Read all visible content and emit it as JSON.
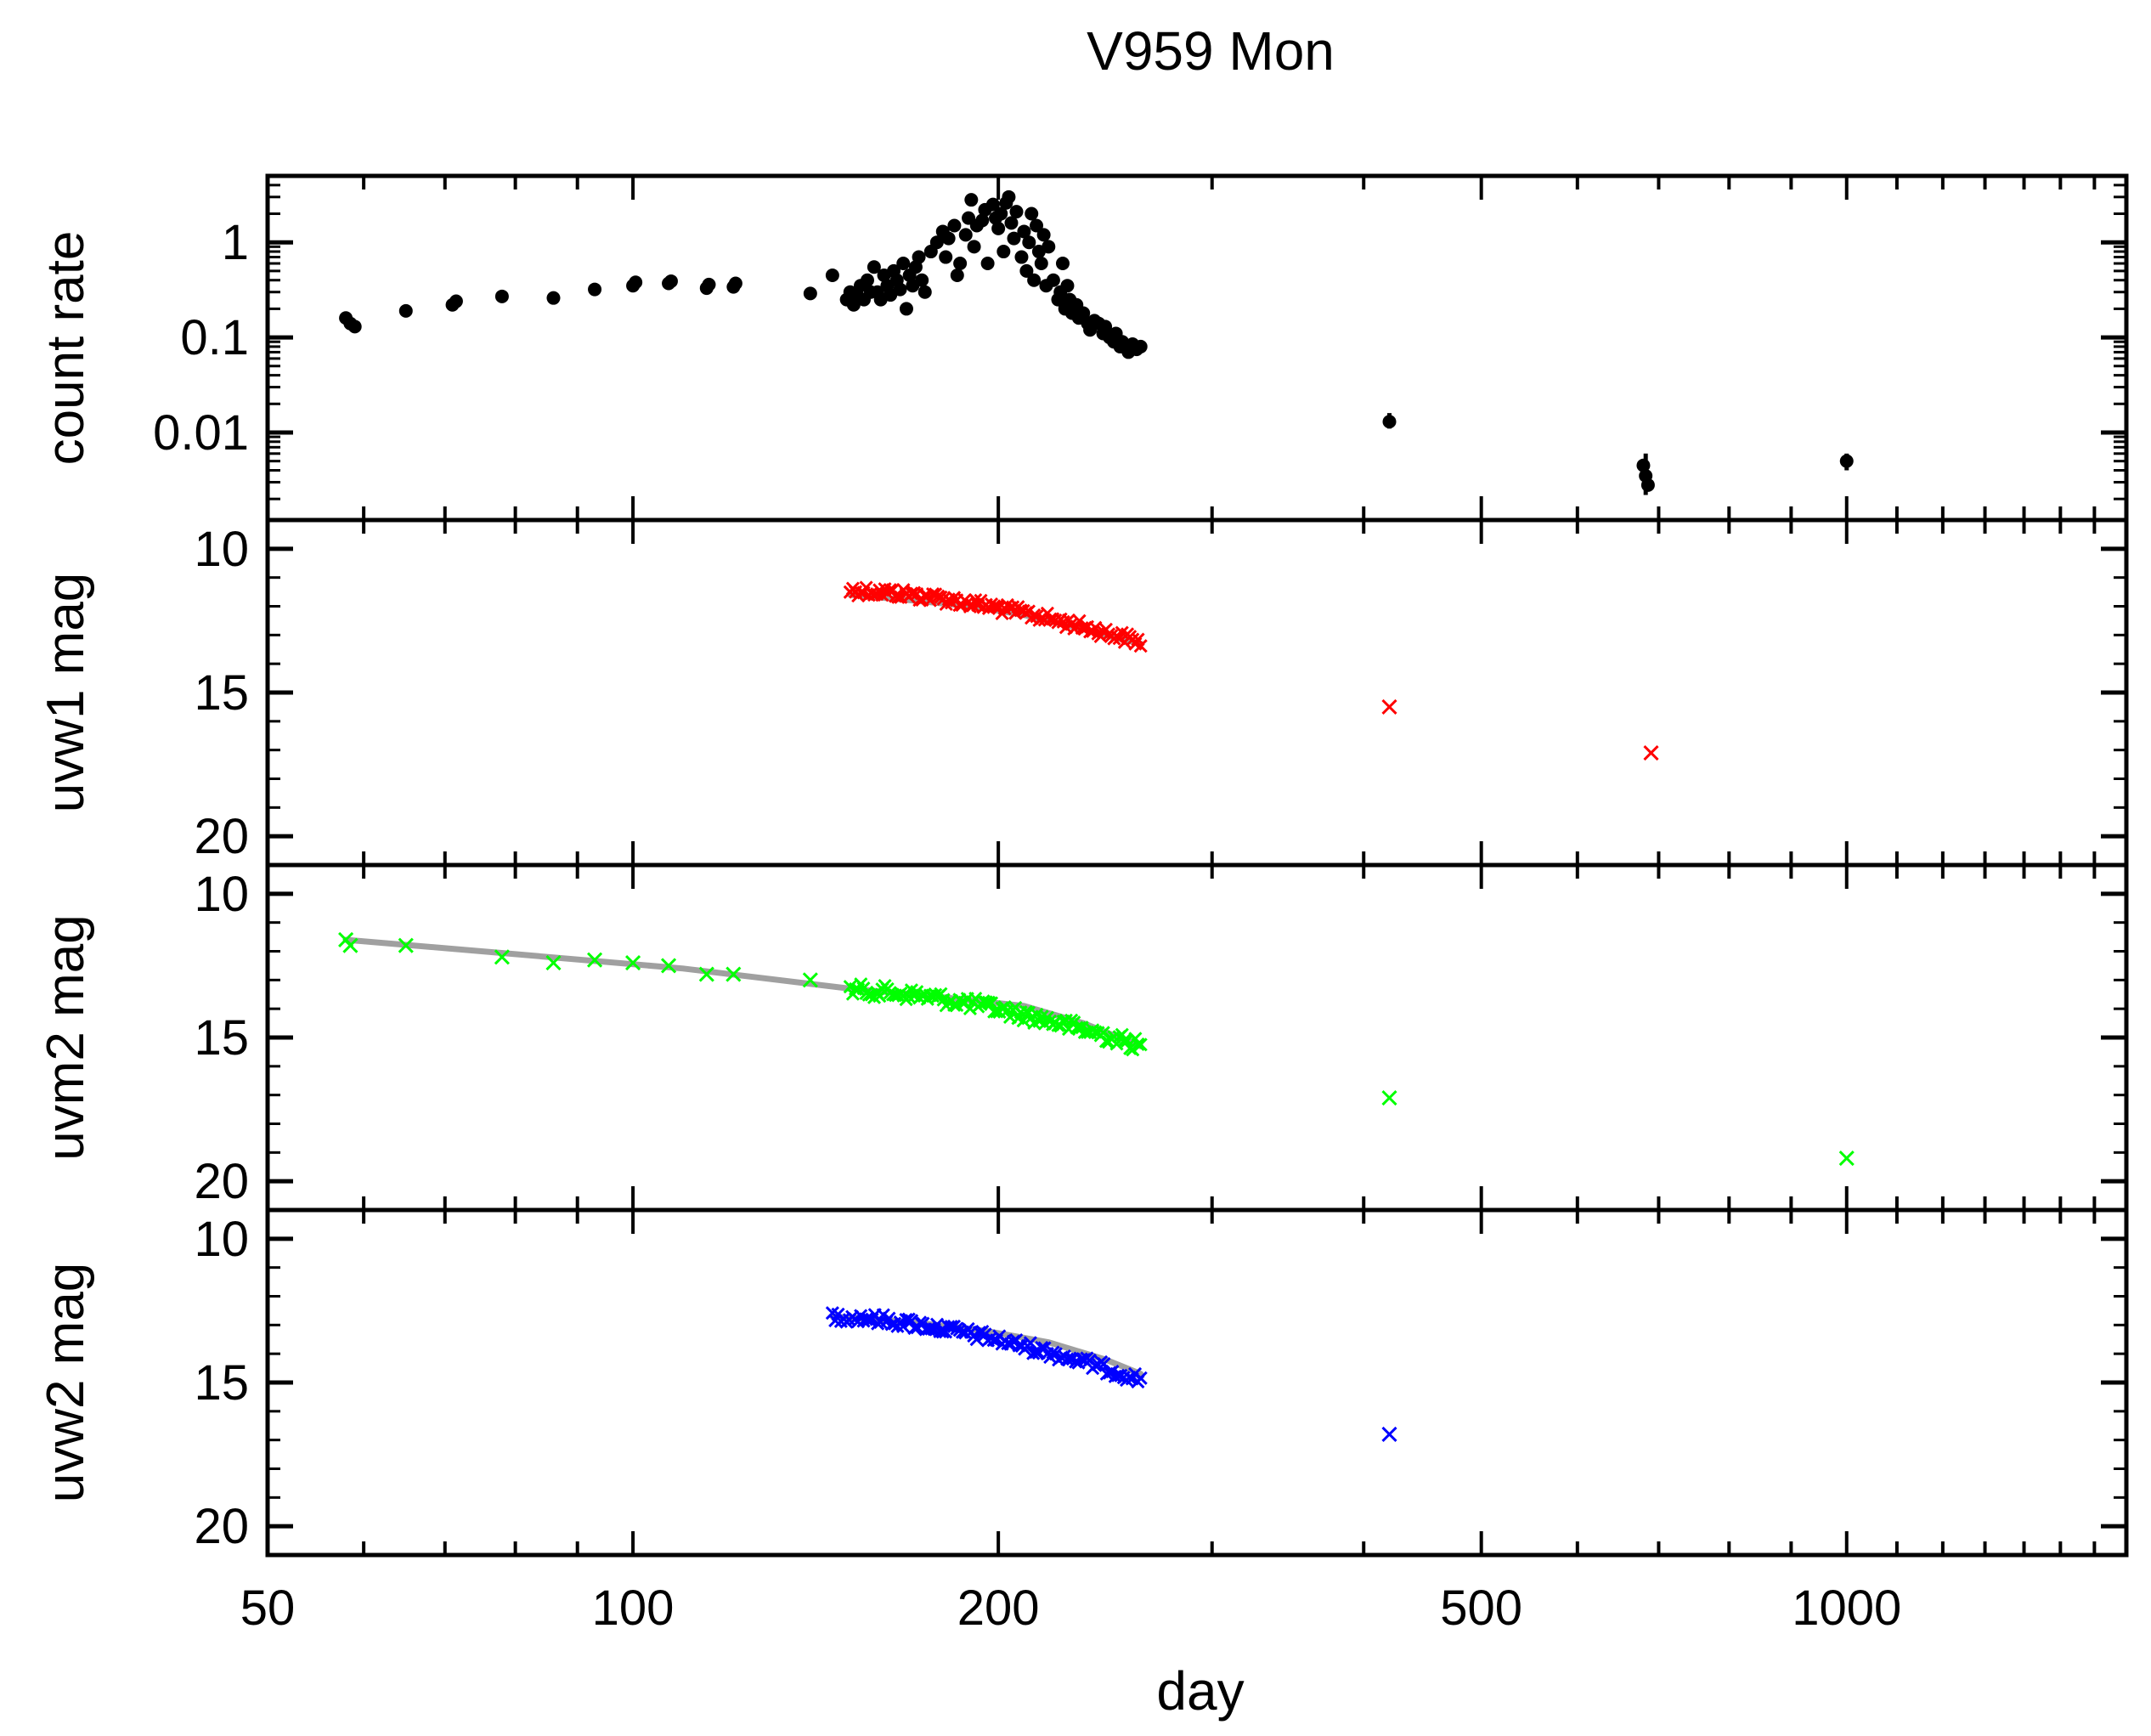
{
  "chart_data": {
    "type": "scatter",
    "title": "V959 Mon",
    "xlabel": "day",
    "xscale": "log",
    "xlim": [
      50,
      1700
    ],
    "xtick_labels": [
      "50",
      "100",
      "200",
      "500",
      "1000"
    ],
    "xtick_values": [
      50,
      100,
      200,
      500,
      1000
    ],
    "panels": [
      {
        "id": "count",
        "ylabel": "count rate",
        "yscale": "log",
        "ylim": [
          0.0012,
          5
        ],
        "ytick_labels": [
          "1",
          "0.1",
          "0.01"
        ],
        "ytick_values": [
          1,
          0.1,
          0.01
        ],
        "series": [
          {
            "name": "count rate",
            "marker": "dot",
            "color": "#000000",
            "points": [
              [
                58,
                0.16
              ],
              [
                58.5,
                0.14
              ],
              [
                59,
                0.13
              ],
              [
                65,
                0.19
              ],
              [
                71,
                0.22
              ],
              [
                71.5,
                0.24
              ],
              [
                78,
                0.27
              ],
              [
                86,
                0.26
              ],
              [
                93,
                0.32
              ],
              [
                100,
                0.35
              ],
              [
                100.5,
                0.38
              ],
              [
                107,
                0.37
              ],
              [
                107.5,
                0.39
              ],
              [
                115,
                0.33
              ],
              [
                115.5,
                0.36
              ],
              [
                121,
                0.34
              ],
              [
                121.5,
                0.37
              ],
              [
                140,
                0.29
              ],
              [
                146,
                0.45
              ],
              [
                150,
                0.25
              ],
              [
                151,
                0.3
              ],
              [
                152,
                0.22
              ],
              [
                153,
                0.28
              ],
              [
                154,
                0.35
              ],
              [
                155,
                0.25
              ],
              [
                156,
                0.4
              ],
              [
                157,
                0.3
              ],
              [
                158,
                0.55
              ],
              [
                159,
                0.3
              ],
              [
                160,
                0.25
              ],
              [
                161,
                0.45
              ],
              [
                162,
                0.35
              ],
              [
                163,
                0.28
              ],
              [
                164,
                0.5
              ],
              [
                165,
                0.4
              ],
              [
                166,
                0.32
              ],
              [
                167,
                0.6
              ],
              [
                168,
                0.2
              ],
              [
                169,
                0.45
              ],
              [
                170,
                0.35
              ],
              [
                171,
                0.55
              ],
              [
                172,
                0.7
              ],
              [
                173,
                0.4
              ],
              [
                174,
                0.3
              ],
              [
                176,
                0.8
              ],
              [
                178,
                1.0
              ],
              [
                180,
                1.3
              ],
              [
                181,
                0.7
              ],
              [
                182,
                1.1
              ],
              [
                184,
                1.5
              ],
              [
                185,
                0.45
              ],
              [
                186,
                0.6
              ],
              [
                188,
                1.2
              ],
              [
                189,
                1.8
              ],
              [
                190,
                2.8
              ],
              [
                191,
                0.9
              ],
              [
                192,
                1.5
              ],
              [
                194,
                1.7
              ],
              [
                195,
                2.2
              ],
              [
                196,
                0.6
              ],
              [
                198,
                2.5
              ],
              [
                199,
                1.8
              ],
              [
                200,
                1.4
              ],
              [
                201,
                2.0
              ],
              [
                202,
                0.8
              ],
              [
                203,
                2.6
              ],
              [
                204,
                3.0
              ],
              [
                205,
                1.6
              ],
              [
                206,
                1.1
              ],
              [
                207,
                2.1
              ],
              [
                209,
                0.7
              ],
              [
                210,
                1.3
              ],
              [
                211,
                0.5
              ],
              [
                212,
                1.0
              ],
              [
                213,
                2.0
              ],
              [
                214,
                0.4
              ],
              [
                215,
                1.5
              ],
              [
                216,
                0.8
              ],
              [
                217,
                0.6
              ],
              [
                218,
                1.2
              ],
              [
                219,
                0.35
              ],
              [
                220,
                0.9
              ],
              [
                222,
                0.4
              ],
              [
                224,
                0.25
              ],
              [
                225,
                0.3
              ],
              [
                226,
                0.6
              ],
              [
                227,
                0.2
              ],
              [
                228,
                0.35
              ],
              [
                229,
                0.25
              ],
              [
                230,
                0.18
              ],
              [
                232,
                0.22
              ],
              [
                233,
                0.16
              ],
              [
                235,
                0.18
              ],
              [
                237,
                0.14
              ],
              [
                238,
                0.12
              ],
              [
                240,
                0.15
              ],
              [
                242,
                0.14
              ],
              [
                244,
                0.11
              ],
              [
                245,
                0.13
              ],
              [
                247,
                0.1
              ],
              [
                249,
                0.09
              ],
              [
                250,
                0.11
              ],
              [
                252,
                0.08
              ],
              [
                253,
                0.09
              ],
              [
                255,
                0.08
              ],
              [
                256,
                0.07
              ],
              [
                258,
                0.085
              ],
              [
                260,
                0.075
              ],
              [
                262,
                0.08
              ],
              [
                420,
                0.013
              ],
              [
                680,
                0.0045
              ],
              [
                683,
                0.0035
              ],
              [
                686,
                0.0028
              ],
              [
                1000,
                0.005
              ]
            ]
          }
        ]
      },
      {
        "id": "uvw1",
        "ylabel": "uvw1 mag",
        "yscale": "linear",
        "ylim": [
          21,
          9
        ],
        "ytick_labels": [
          "10",
          "15",
          "20"
        ],
        "ytick_values": [
          10,
          15,
          20
        ],
        "series": [
          {
            "name": "uvw1 dense",
            "marker": "x",
            "color": "#ff0000",
            "dense": {
              "x_start": 151,
              "x_end": 262,
              "count": 110,
              "a": 11.45,
              "b": 13.25,
              "jitter": 0.18
            }
          },
          {
            "name": "uvw1 late",
            "marker": "x",
            "color": "#ff0000",
            "points": [
              [
                420,
                15.5
              ],
              [
                690,
                17.1
              ]
            ]
          },
          {
            "name": "uvw1 fit",
            "marker": "line",
            "color": "#a0a0a0",
            "points": [
              [
                151,
                11.6
              ],
              [
                170,
                11.8
              ],
              [
                190,
                12.0
              ],
              [
                210,
                12.3
              ],
              [
                230,
                12.7
              ],
              [
                250,
                13.1
              ],
              [
                262,
                13.3
              ]
            ]
          }
        ]
      },
      {
        "id": "uvm2",
        "ylabel": "uvm2 mag",
        "yscale": "linear",
        "ylim": [
          21,
          9
        ],
        "ytick_labels": [
          "10",
          "15",
          "20"
        ],
        "ytick_values": [
          10,
          15,
          20
        ],
        "series": [
          {
            "name": "uvm2 dense",
            "marker": "x",
            "color": "#00ff00",
            "dense": {
              "x_start": 151,
              "x_end": 262,
              "count": 110,
              "a": 13.35,
              "b": 15.3,
              "jitter": 0.22
            }
          },
          {
            "name": "uvm2 early",
            "marker": "x",
            "color": "#00ff00",
            "points": [
              [
                58,
                11.6
              ],
              [
                58.5,
                11.8
              ],
              [
                65,
                11.8
              ],
              [
                78,
                12.2
              ],
              [
                86,
                12.4
              ],
              [
                93,
                12.3
              ],
              [
                100,
                12.4
              ],
              [
                107,
                12.5
              ],
              [
                115,
                12.8
              ],
              [
                121,
                12.8
              ],
              [
                140,
                13.0
              ]
            ]
          },
          {
            "name": "uvm2 late",
            "marker": "x",
            "color": "#00ff00",
            "points": [
              [
                420,
                17.1
              ],
              [
                1000,
                19.2
              ]
            ]
          },
          {
            "name": "uvm2 fit",
            "marker": "line",
            "color": "#a0a0a0",
            "points": [
              [
                58,
                11.6
              ],
              [
                80,
                12.1
              ],
              [
                110,
                12.6
              ],
              [
                151,
                13.3
              ],
              [
                180,
                13.6
              ],
              [
                210,
                13.9
              ],
              [
                235,
                14.5
              ],
              [
                262,
                15.3
              ]
            ]
          }
        ]
      },
      {
        "id": "uvw2",
        "ylabel": "uvw2 mag",
        "yscale": "linear",
        "ylim": [
          21,
          9
        ],
        "ytick_labels": [
          "10",
          "15",
          "20"
        ],
        "ytick_values": [
          10,
          15,
          20
        ],
        "series": [
          {
            "name": "uvw2 dense",
            "marker": "x",
            "color": "#0000ff",
            "dense": {
              "x_start": 146,
              "x_end": 262,
              "count": 110,
              "a": 12.7,
              "b": 14.9,
              "jitter": 0.18
            }
          },
          {
            "name": "uvw2 late",
            "marker": "x",
            "color": "#0000ff",
            "points": [
              [
                420,
                16.8
              ]
            ]
          },
          {
            "name": "uvw2 fit",
            "marker": "line",
            "color": "#a0a0a0",
            "points": [
              [
                146,
                12.7
              ],
              [
                170,
                12.9
              ],
              [
                195,
                13.2
              ],
              [
                220,
                13.6
              ],
              [
                245,
                14.2
              ],
              [
                262,
                14.7
              ]
            ]
          }
        ]
      }
    ]
  }
}
